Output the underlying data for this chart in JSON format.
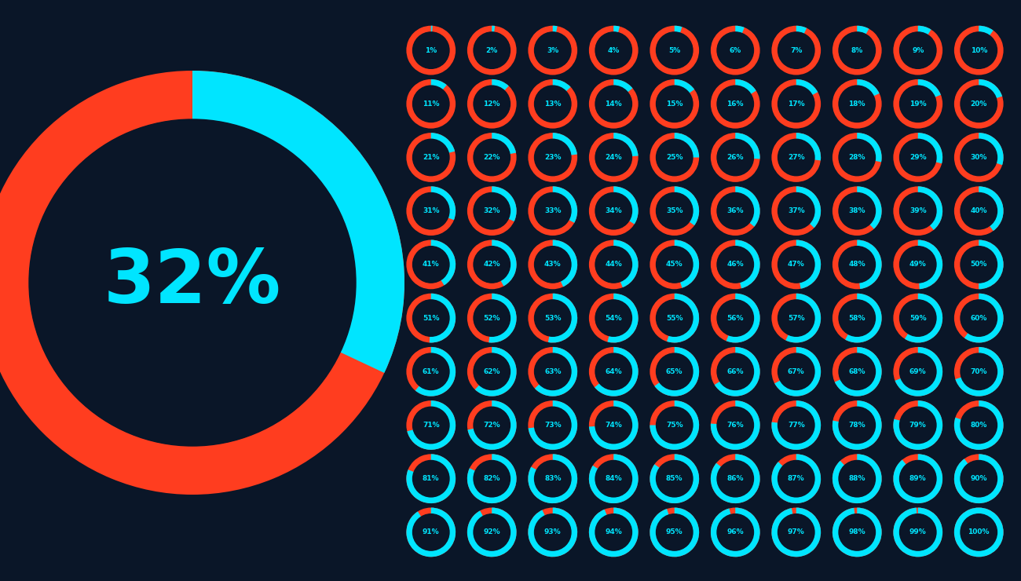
{
  "bg_color": "#0a1628",
  "cyan_color": "#00e5ff",
  "red_color": "#ff3d1f",
  "large_value": 32,
  "small_cols": 10,
  "small_rows": 10,
  "text_fontsize_large": 68,
  "text_fontsize_small": 6.5
}
